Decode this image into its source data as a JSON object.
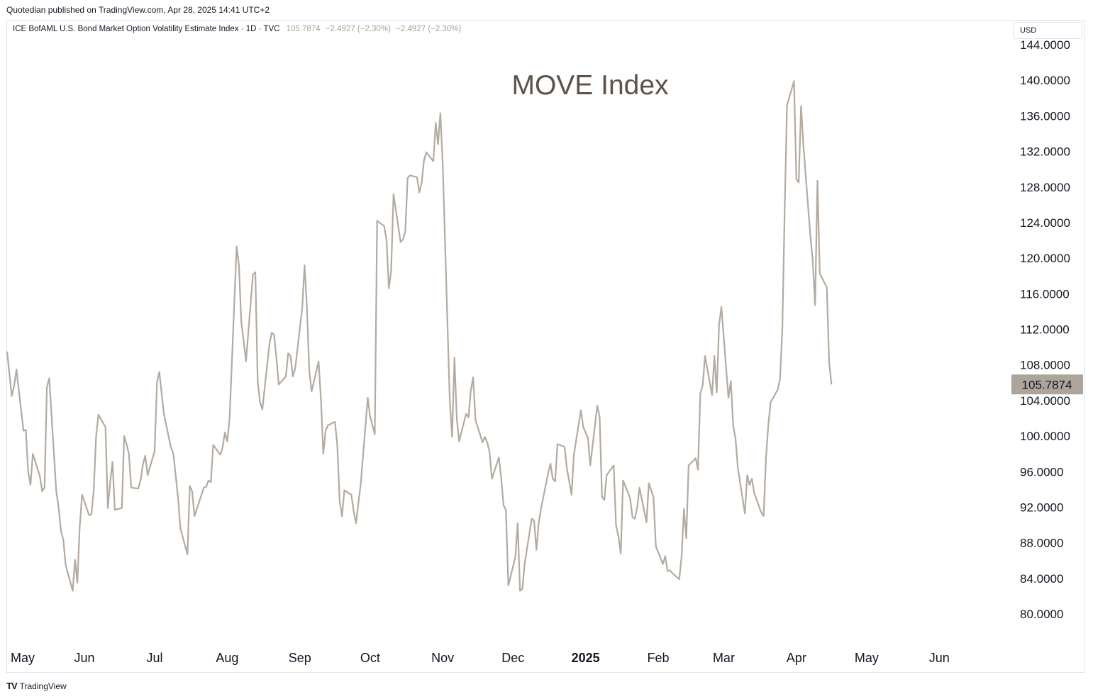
{
  "header": {
    "published_by": "Quotedian published on TradingView.com, Apr 28, 2025 14:41 UTC+2"
  },
  "legend": {
    "symbol": "ICE BofAML U.S. Bond Market Option Volatility Estimate Index · 1D · TVC",
    "last": "105.7874",
    "change1": "−2.4927 (−2.30%)",
    "change2": "−2.4927 (−2.30%)"
  },
  "currency_button": "USD",
  "footer": {
    "brand": "TradingView",
    "logo": "TV"
  },
  "colors": {
    "line": "#b3aaa0",
    "price_tag": "#ada59b",
    "title": "#5c5249"
  },
  "chart_data": {
    "type": "line",
    "title": "MOVE Index",
    "xlabel": "",
    "ylabel": "",
    "ylim": [
      76.5,
      145
    ],
    "grid": false,
    "y_ticks": [
      144,
      140,
      136,
      132,
      128,
      124,
      120,
      116,
      112,
      108,
      104,
      100,
      96,
      92,
      88,
      84,
      80
    ],
    "y_tick_labels": [
      "144.0000",
      "140.0000",
      "136.0000",
      "132.0000",
      "128.0000",
      "124.0000",
      "120.0000",
      "116.0000",
      "112.0000",
      "108.0000",
      "104.0000",
      "100.0000",
      "96.0000",
      "92.0000",
      "88.0000",
      "84.0000",
      "80.0000"
    ],
    "x_ticks": [
      {
        "label": "May",
        "date": "2024-05-01",
        "bold": false
      },
      {
        "label": "Jun",
        "date": "2024-06-01",
        "bold": false
      },
      {
        "label": "Jul",
        "date": "2024-07-01",
        "bold": false
      },
      {
        "label": "Aug",
        "date": "2024-08-01",
        "bold": false
      },
      {
        "label": "Sep",
        "date": "2024-09-01",
        "bold": false
      },
      {
        "label": "Oct",
        "date": "2024-10-01",
        "bold": false
      },
      {
        "label": "Nov",
        "date": "2024-11-01",
        "bold": false
      },
      {
        "label": "Dec",
        "date": "2024-12-01",
        "bold": false
      },
      {
        "label": "2025",
        "date": "2025-01-01",
        "bold": true
      },
      {
        "label": "Feb",
        "date": "2025-02-01",
        "bold": false
      },
      {
        "label": "Mar",
        "date": "2025-03-01",
        "bold": false
      },
      {
        "label": "Apr",
        "date": "2025-04-01",
        "bold": false
      },
      {
        "label": "May",
        "date": "2025-05-01",
        "bold": false
      },
      {
        "label": "Jun",
        "date": "2025-06-01",
        "bold": false
      }
    ],
    "x_range": [
      "2024-04-29",
      "2025-06-30"
    ],
    "last_value_label": "105.7874",
    "series": [
      {
        "values": [
          [
            "2024-04-29",
            109.5
          ],
          [
            "2024-05-01",
            104.5
          ],
          [
            "2024-05-02",
            105.6
          ],
          [
            "2024-05-03",
            107.5
          ],
          [
            "2024-05-06",
            100.6
          ],
          [
            "2024-05-07",
            100.7
          ],
          [
            "2024-05-08",
            96.0
          ],
          [
            "2024-05-09",
            94.5
          ],
          [
            "2024-05-10",
            98.0
          ],
          [
            "2024-05-13",
            95.5
          ],
          [
            "2024-05-14",
            93.8
          ],
          [
            "2024-05-15",
            94.2
          ],
          [
            "2024-05-16",
            105.5
          ],
          [
            "2024-05-17",
            106.5
          ],
          [
            "2024-05-20",
            93.8
          ],
          [
            "2024-05-21",
            92.0
          ],
          [
            "2024-05-22",
            89.4
          ],
          [
            "2024-05-23",
            88.3
          ],
          [
            "2024-05-24",
            85.5
          ],
          [
            "2024-05-27",
            82.6
          ],
          [
            "2024-05-28",
            86.1
          ],
          [
            "2024-05-29",
            83.5
          ],
          [
            "2024-05-30",
            89.8
          ],
          [
            "2024-05-31",
            93.4
          ],
          [
            "2024-06-03",
            91.1
          ],
          [
            "2024-06-04",
            91.2
          ],
          [
            "2024-06-05",
            94.0
          ],
          [
            "2024-06-06",
            100.0
          ],
          [
            "2024-06-07",
            102.4
          ],
          [
            "2024-06-10",
            101.0
          ],
          [
            "2024-06-11",
            91.9
          ],
          [
            "2024-06-12",
            94.8
          ],
          [
            "2024-06-13",
            97.1
          ],
          [
            "2024-06-14",
            91.7
          ],
          [
            "2024-06-17",
            91.9
          ],
          [
            "2024-06-18",
            100.0
          ],
          [
            "2024-06-19",
            99.1
          ],
          [
            "2024-06-20",
            98.0
          ],
          [
            "2024-06-21",
            94.2
          ],
          [
            "2024-06-24",
            94.1
          ],
          [
            "2024-06-25",
            95.0
          ],
          [
            "2024-06-26",
            96.8
          ],
          [
            "2024-06-27",
            97.8
          ],
          [
            "2024-06-28",
            95.6
          ],
          [
            "2024-07-01",
            98.3
          ],
          [
            "2024-07-02",
            106.0
          ],
          [
            "2024-07-03",
            107.2
          ],
          [
            "2024-07-05",
            102.4
          ],
          [
            "2024-07-08",
            98.7
          ],
          [
            "2024-07-09",
            98.0
          ],
          [
            "2024-07-10",
            95.5
          ],
          [
            "2024-07-11",
            93.0
          ],
          [
            "2024-07-12",
            89.6
          ],
          [
            "2024-07-15",
            86.7
          ],
          [
            "2024-07-16",
            94.4
          ],
          [
            "2024-07-17",
            93.8
          ],
          [
            "2024-07-18",
            91.0
          ],
          [
            "2024-07-19",
            91.8
          ],
          [
            "2024-07-22",
            94.2
          ],
          [
            "2024-07-23",
            94.3
          ],
          [
            "2024-07-24",
            95.0
          ],
          [
            "2024-07-25",
            94.8
          ],
          [
            "2024-07-26",
            99.0
          ],
          [
            "2024-07-29",
            97.9
          ],
          [
            "2024-07-30",
            98.7
          ],
          [
            "2024-07-31",
            100.4
          ],
          [
            "2024-08-01",
            99.4
          ],
          [
            "2024-08-02",
            102.0
          ],
          [
            "2024-08-05",
            121.3
          ],
          [
            "2024-08-06",
            119.2
          ],
          [
            "2024-08-07",
            112.8
          ],
          [
            "2024-08-08",
            110.7
          ],
          [
            "2024-08-09",
            108.4
          ],
          [
            "2024-08-12",
            118.2
          ],
          [
            "2024-08-13",
            118.4
          ],
          [
            "2024-08-14",
            106.2
          ],
          [
            "2024-08-15",
            103.8
          ],
          [
            "2024-08-16",
            103.0
          ],
          [
            "2024-08-19",
            110.3
          ],
          [
            "2024-08-20",
            111.6
          ],
          [
            "2024-08-21",
            111.4
          ],
          [
            "2024-08-22",
            108.8
          ],
          [
            "2024-08-23",
            105.8
          ],
          [
            "2024-08-26",
            106.7
          ],
          [
            "2024-08-27",
            109.3
          ],
          [
            "2024-08-28",
            109.0
          ],
          [
            "2024-08-29",
            106.7
          ],
          [
            "2024-08-30",
            107.6
          ],
          [
            "2024-09-02",
            114.4
          ],
          [
            "2024-09-03",
            119.2
          ],
          [
            "2024-09-04",
            114.5
          ],
          [
            "2024-09-05",
            107.4
          ],
          [
            "2024-09-06",
            105.0
          ],
          [
            "2024-09-09",
            108.4
          ],
          [
            "2024-09-10",
            104.1
          ],
          [
            "2024-09-11",
            98.0
          ],
          [
            "2024-09-12",
            100.6
          ],
          [
            "2024-09-13",
            101.2
          ],
          [
            "2024-09-16",
            101.6
          ],
          [
            "2024-09-17",
            98.9
          ],
          [
            "2024-09-18",
            92.7
          ],
          [
            "2024-09-19",
            91.0
          ],
          [
            "2024-09-20",
            93.9
          ],
          [
            "2024-09-23",
            93.4
          ],
          [
            "2024-09-24",
            91.5
          ],
          [
            "2024-09-25",
            90.2
          ],
          [
            "2024-09-26",
            92.5
          ],
          [
            "2024-09-27",
            94.6
          ],
          [
            "2024-09-30",
            104.3
          ],
          [
            "2024-10-01",
            102.2
          ],
          [
            "2024-10-02",
            101.2
          ],
          [
            "2024-10-03",
            100.2
          ],
          [
            "2024-10-04",
            124.2
          ],
          [
            "2024-10-07",
            123.6
          ],
          [
            "2024-10-08",
            122.1
          ],
          [
            "2024-10-09",
            116.6
          ],
          [
            "2024-10-10",
            118.6
          ],
          [
            "2024-10-11",
            127.2
          ],
          [
            "2024-10-14",
            121.8
          ],
          [
            "2024-10-15",
            122.1
          ],
          [
            "2024-10-16",
            123.0
          ],
          [
            "2024-10-17",
            129.0
          ],
          [
            "2024-10-18",
            129.3
          ],
          [
            "2024-10-21",
            129.1
          ],
          [
            "2024-10-22",
            127.4
          ],
          [
            "2024-10-23",
            128.5
          ],
          [
            "2024-10-24",
            131.0
          ],
          [
            "2024-10-25",
            131.9
          ],
          [
            "2024-10-28",
            130.9
          ],
          [
            "2024-10-29",
            135.2
          ],
          [
            "2024-10-30",
            132.8
          ],
          [
            "2024-10-31",
            136.3
          ],
          [
            "2024-11-01",
            130.5
          ],
          [
            "2024-11-04",
            104.1
          ],
          [
            "2024-11-05",
            99.9
          ],
          [
            "2024-11-06",
            108.8
          ],
          [
            "2024-11-07",
            102.0
          ],
          [
            "2024-11-08",
            99.4
          ],
          [
            "2024-11-11",
            102.5
          ],
          [
            "2024-11-12",
            102.1
          ],
          [
            "2024-11-13",
            105.1
          ],
          [
            "2024-11-14",
            106.6
          ],
          [
            "2024-11-15",
            101.8
          ],
          [
            "2024-11-18",
            99.3
          ],
          [
            "2024-11-19",
            99.9
          ],
          [
            "2024-11-20",
            99.3
          ],
          [
            "2024-11-21",
            98.2
          ],
          [
            "2024-11-22",
            95.2
          ],
          [
            "2024-11-25",
            97.6
          ],
          [
            "2024-11-26",
            95.2
          ],
          [
            "2024-11-27",
            92.2
          ],
          [
            "2024-11-28",
            91.7
          ],
          [
            "2024-11-29",
            83.2
          ],
          [
            "2024-12-02",
            86.4
          ],
          [
            "2024-12-03",
            90.2
          ],
          [
            "2024-12-04",
            82.6
          ],
          [
            "2024-12-05",
            82.8
          ],
          [
            "2024-12-06",
            85.7
          ],
          [
            "2024-12-09",
            90.7
          ],
          [
            "2024-12-10",
            90.5
          ],
          [
            "2024-12-11",
            87.2
          ],
          [
            "2024-12-12",
            90.3
          ],
          [
            "2024-12-13",
            91.9
          ],
          [
            "2024-12-16",
            95.8
          ],
          [
            "2024-12-17",
            96.9
          ],
          [
            "2024-12-18",
            95.2
          ],
          [
            "2024-12-19",
            94.9
          ],
          [
            "2024-12-20",
            99.1
          ],
          [
            "2024-12-23",
            98.8
          ],
          [
            "2024-12-24",
            96.4
          ],
          [
            "2024-12-26",
            93.4
          ],
          [
            "2024-12-27",
            97.9
          ],
          [
            "2024-12-30",
            102.9
          ],
          [
            "2024-12-31",
            101.0
          ],
          [
            "2025-01-02",
            99.8
          ],
          [
            "2025-01-03",
            96.7
          ],
          [
            "2025-01-06",
            103.4
          ],
          [
            "2025-01-07",
            102.2
          ],
          [
            "2025-01-08",
            93.2
          ],
          [
            "2025-01-09",
            92.8
          ],
          [
            "2025-01-10",
            95.6
          ],
          [
            "2025-01-13",
            96.7
          ],
          [
            "2025-01-14",
            90.0
          ],
          [
            "2025-01-15",
            88.7
          ],
          [
            "2025-01-16",
            86.8
          ],
          [
            "2025-01-17",
            95.0
          ],
          [
            "2025-01-20",
            93.0
          ],
          [
            "2025-01-21",
            90.9
          ],
          [
            "2025-01-22",
            90.7
          ],
          [
            "2025-01-23",
            91.9
          ],
          [
            "2025-01-24",
            94.2
          ],
          [
            "2025-01-27",
            90.3
          ],
          [
            "2025-01-28",
            94.7
          ],
          [
            "2025-01-29",
            93.9
          ],
          [
            "2025-01-30",
            93.1
          ],
          [
            "2025-01-31",
            87.6
          ],
          [
            "2025-02-03",
            85.6
          ],
          [
            "2025-02-04",
            86.5
          ],
          [
            "2025-02-05",
            84.8
          ],
          [
            "2025-02-06",
            84.9
          ],
          [
            "2025-02-07",
            84.6
          ],
          [
            "2025-02-10",
            83.9
          ],
          [
            "2025-02-11",
            86.5
          ],
          [
            "2025-02-12",
            91.8
          ],
          [
            "2025-02-13",
            88.5
          ],
          [
            "2025-02-14",
            96.7
          ],
          [
            "2025-02-17",
            97.5
          ],
          [
            "2025-02-18",
            96.2
          ],
          [
            "2025-02-19",
            104.8
          ],
          [
            "2025-02-20",
            105.7
          ],
          [
            "2025-02-21",
            109.0
          ],
          [
            "2025-02-24",
            104.6
          ],
          [
            "2025-02-25",
            109.0
          ],
          [
            "2025-02-26",
            104.9
          ],
          [
            "2025-02-27",
            112.5
          ],
          [
            "2025-02-28",
            114.5
          ],
          [
            "2025-03-03",
            104.3
          ],
          [
            "2025-03-04",
            106.2
          ],
          [
            "2025-03-05",
            101.2
          ],
          [
            "2025-03-06",
            99.7
          ],
          [
            "2025-03-07",
            96.4
          ],
          [
            "2025-03-10",
            91.3
          ],
          [
            "2025-03-11",
            95.6
          ],
          [
            "2025-03-12",
            94.5
          ],
          [
            "2025-03-13",
            95.2
          ],
          [
            "2025-03-14",
            93.6
          ],
          [
            "2025-03-17",
            91.4
          ],
          [
            "2025-03-18",
            91.0
          ],
          [
            "2025-03-19",
            97.5
          ],
          [
            "2025-03-20",
            101.2
          ],
          [
            "2025-03-21",
            103.8
          ],
          [
            "2025-03-24",
            105.2
          ],
          [
            "2025-03-25",
            106.4
          ],
          [
            "2025-03-26",
            112.0
          ],
          [
            "2025-03-27",
            125.4
          ],
          [
            "2025-03-28",
            137.2
          ],
          [
            "2025-03-31",
            139.9
          ],
          [
            "2025-04-01",
            128.9
          ],
          [
            "2025-04-02",
            128.5
          ],
          [
            "2025-04-03",
            137.1
          ],
          [
            "2025-04-04",
            132.7
          ],
          [
            "2025-04-07",
            122.4
          ],
          [
            "2025-04-08",
            119.7
          ],
          [
            "2025-04-09",
            114.7
          ],
          [
            "2025-04-10",
            128.7
          ],
          [
            "2025-04-11",
            118.3
          ],
          [
            "2025-04-14",
            116.7
          ],
          [
            "2025-04-15",
            108.3
          ],
          [
            "2025-04-16",
            105.8
          ]
        ]
      }
    ]
  }
}
